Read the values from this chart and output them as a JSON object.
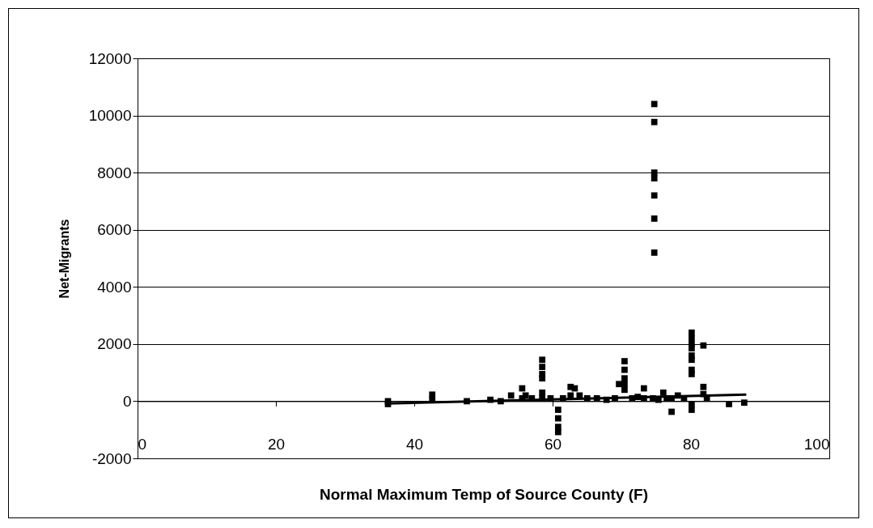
{
  "chart_data": {
    "type": "scatter",
    "xlabel": "Normal Maximum Temp of Source County (F)",
    "ylabel": "Net-Migrants",
    "xlim": [
      0,
      100
    ],
    "xticks": [
      0,
      20,
      40,
      60,
      80,
      100
    ],
    "ylim": [
      -2000,
      12000
    ],
    "yticks": [
      -2000,
      0,
      2000,
      4000,
      6000,
      8000,
      10000,
      12000
    ],
    "grid": "y",
    "series": [
      {
        "color": "#000000",
        "marker": "square",
        "x": [
          74.7,
          74.7,
          74.7,
          74.7,
          74.7,
          74.7,
          74.7,
          36.2,
          36.2,
          42.6,
          42.6,
          47.6,
          51,
          52.5,
          54,
          55.6,
          55.6,
          56.1,
          57,
          58.5,
          58.5,
          58.5,
          58.5,
          58.5,
          58.5,
          59.7,
          60.8,
          60.8,
          60.8,
          60.8,
          61.5,
          62.6,
          62.6,
          63.2,
          63.9,
          65,
          66.4,
          67.8,
          69,
          69.6,
          70.4,
          70.4,
          70.4,
          70.4,
          70.4,
          71.5,
          72.3,
          73.2,
          73.2,
          74.5,
          75.3,
          76,
          76.5,
          77.2,
          77.2,
          78.1,
          79,
          80.1,
          80.1,
          80.1,
          80.1,
          80.1,
          80.1,
          80.1,
          80.1,
          80.1,
          80.1,
          81.8,
          81.8,
          81.8,
          82.3,
          85.5,
          87.7
        ],
        "values": [
          10400,
          9770,
          8000,
          7800,
          7200,
          6390,
          5200,
          -100,
          0,
          230,
          50,
          0,
          50,
          0,
          200,
          450,
          100,
          200,
          100,
          1450,
          1200,
          950,
          800,
          300,
          100,
          100,
          -300,
          -600,
          -900,
          -1080,
          100,
          500,
          200,
          450,
          200,
          100,
          100,
          50,
          100,
          600,
          1400,
          1100,
          800,
          600,
          400,
          100,
          150,
          450,
          100,
          100,
          50,
          300,
          100,
          -370,
          100,
          200,
          100,
          2400,
          2200,
          2000,
          1850,
          1600,
          1450,
          1100,
          950,
          -100,
          -300,
          1950,
          500,
          250,
          100,
          -100,
          -50
        ]
      },
      {
        "type": "line",
        "color": "#000000",
        "x": [
          36,
          88
        ],
        "values": [
          -80,
          230
        ]
      }
    ]
  }
}
